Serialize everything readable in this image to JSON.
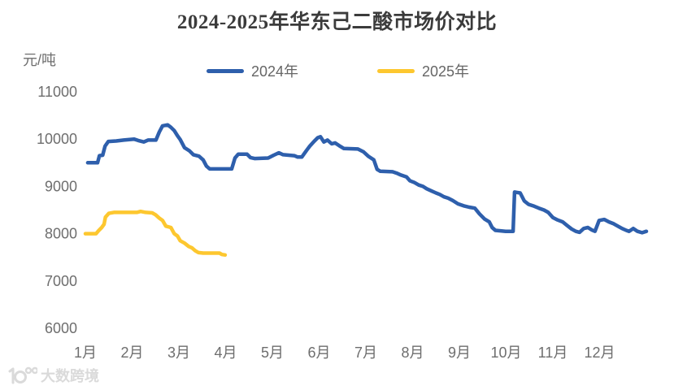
{
  "watermark": {
    "text": "大数跨境"
  },
  "colors": {
    "background": "#ffffff",
    "title_text": "#3b3b3b",
    "axis_text": "#6e6e6e",
    "series_2024": "#2e5fac",
    "series_2025": "#fdc72f",
    "watermark": "#dadada"
  },
  "chart_data": {
    "type": "line",
    "title": "2024-2025年华东己二酸市场价对比",
    "xlabel": "",
    "ylabel": "元/吨",
    "ylim": [
      6000,
      11000
    ],
    "y_ticks": [
      11000,
      10000,
      9000,
      8000,
      7000,
      6000
    ],
    "x_ticks": [
      "1月",
      "2月",
      "3月",
      "4月",
      "5月",
      "6月",
      "7月",
      "8月",
      "9月",
      "10月",
      "11月",
      "12月"
    ],
    "x_unit": "month (1 = Jan 1, 13 = Dec 31)",
    "grid": false,
    "legend_position": "top",
    "series": [
      {
        "name": "2024年",
        "color": "#2e5fac",
        "points": [
          [
            1.05,
            9500
          ],
          [
            1.26,
            9500
          ],
          [
            1.3,
            9650
          ],
          [
            1.37,
            9660
          ],
          [
            1.42,
            9850
          ],
          [
            1.49,
            9950
          ],
          [
            1.66,
            9960
          ],
          [
            1.82,
            9980
          ],
          [
            2.04,
            10000
          ],
          [
            2.13,
            9970
          ],
          [
            2.25,
            9940
          ],
          [
            2.34,
            9980
          ],
          [
            2.51,
            9980
          ],
          [
            2.58,
            10150
          ],
          [
            2.65,
            10280
          ],
          [
            2.76,
            10300
          ],
          [
            2.83,
            10250
          ],
          [
            2.9,
            10180
          ],
          [
            2.97,
            10070
          ],
          [
            3.03,
            9990
          ],
          [
            3.12,
            9820
          ],
          [
            3.23,
            9750
          ],
          [
            3.31,
            9670
          ],
          [
            3.43,
            9640
          ],
          [
            3.52,
            9560
          ],
          [
            3.59,
            9430
          ],
          [
            3.66,
            9370
          ],
          [
            4.13,
            9370
          ],
          [
            4.2,
            9600
          ],
          [
            4.27,
            9680
          ],
          [
            4.46,
            9680
          ],
          [
            4.53,
            9610
          ],
          [
            4.62,
            9590
          ],
          [
            4.91,
            9600
          ],
          [
            5.03,
            9660
          ],
          [
            5.14,
            9710
          ],
          [
            5.23,
            9670
          ],
          [
            5.47,
            9650
          ],
          [
            5.54,
            9620
          ],
          [
            5.63,
            9620
          ],
          [
            5.73,
            9760
          ],
          [
            5.8,
            9850
          ],
          [
            5.89,
            9950
          ],
          [
            5.97,
            10030
          ],
          [
            6.03,
            10050
          ],
          [
            6.1,
            9940
          ],
          [
            6.18,
            9980
          ],
          [
            6.27,
            9900
          ],
          [
            6.34,
            9920
          ],
          [
            6.43,
            9860
          ],
          [
            6.53,
            9800
          ],
          [
            6.83,
            9790
          ],
          [
            6.95,
            9730
          ],
          [
            7.05,
            9640
          ],
          [
            7.17,
            9560
          ],
          [
            7.24,
            9360
          ],
          [
            7.31,
            9320
          ],
          [
            7.57,
            9310
          ],
          [
            7.66,
            9280
          ],
          [
            7.75,
            9240
          ],
          [
            7.87,
            9200
          ],
          [
            7.94,
            9120
          ],
          [
            8.04,
            9080
          ],
          [
            8.13,
            9030
          ],
          [
            8.22,
            9000
          ],
          [
            8.3,
            8950
          ],
          [
            8.41,
            8900
          ],
          [
            8.5,
            8860
          ],
          [
            8.58,
            8830
          ],
          [
            8.67,
            8780
          ],
          [
            8.76,
            8750
          ],
          [
            8.86,
            8700
          ],
          [
            8.97,
            8630
          ],
          [
            9.09,
            8590
          ],
          [
            9.21,
            8560
          ],
          [
            9.33,
            8540
          ],
          [
            9.43,
            8420
          ],
          [
            9.54,
            8310
          ],
          [
            9.64,
            8250
          ],
          [
            9.7,
            8130
          ],
          [
            9.77,
            8070
          ],
          [
            9.99,
            8050
          ],
          [
            10.15,
            8050
          ],
          [
            10.18,
            8880
          ],
          [
            10.3,
            8860
          ],
          [
            10.39,
            8690
          ],
          [
            10.48,
            8620
          ],
          [
            10.6,
            8580
          ],
          [
            10.7,
            8540
          ],
          [
            10.81,
            8500
          ],
          [
            10.9,
            8450
          ],
          [
            11.0,
            8340
          ],
          [
            11.1,
            8290
          ],
          [
            11.21,
            8250
          ],
          [
            11.31,
            8170
          ],
          [
            11.4,
            8100
          ],
          [
            11.49,
            8050
          ],
          [
            11.57,
            8030
          ],
          [
            11.66,
            8110
          ],
          [
            11.75,
            8130
          ],
          [
            11.83,
            8080
          ],
          [
            11.9,
            8050
          ],
          [
            11.99,
            8280
          ],
          [
            12.1,
            8300
          ],
          [
            12.2,
            8250
          ],
          [
            12.3,
            8210
          ],
          [
            12.39,
            8160
          ],
          [
            12.48,
            8110
          ],
          [
            12.57,
            8070
          ],
          [
            12.63,
            8050
          ],
          [
            12.72,
            8110
          ],
          [
            12.81,
            8050
          ],
          [
            12.91,
            8020
          ],
          [
            13.0,
            8050
          ]
        ]
      },
      {
        "name": "2025年",
        "color": "#fdc72f",
        "points": [
          [
            1.0,
            8000
          ],
          [
            1.23,
            8000
          ],
          [
            1.28,
            8060
          ],
          [
            1.35,
            8130
          ],
          [
            1.4,
            8200
          ],
          [
            1.43,
            8350
          ],
          [
            1.5,
            8430
          ],
          [
            1.61,
            8450
          ],
          [
            1.92,
            8450
          ],
          [
            2.1,
            8450
          ],
          [
            2.18,
            8470
          ],
          [
            2.29,
            8450
          ],
          [
            2.43,
            8440
          ],
          [
            2.5,
            8400
          ],
          [
            2.58,
            8330
          ],
          [
            2.65,
            8280
          ],
          [
            2.72,
            8160
          ],
          [
            2.83,
            8130
          ],
          [
            2.9,
            8000
          ],
          [
            2.97,
            7950
          ],
          [
            3.03,
            7850
          ],
          [
            3.12,
            7800
          ],
          [
            3.21,
            7730
          ],
          [
            3.28,
            7700
          ],
          [
            3.35,
            7640
          ],
          [
            3.42,
            7600
          ],
          [
            3.52,
            7590
          ],
          [
            3.87,
            7590
          ],
          [
            3.92,
            7560
          ],
          [
            3.99,
            7550
          ]
        ]
      }
    ]
  }
}
